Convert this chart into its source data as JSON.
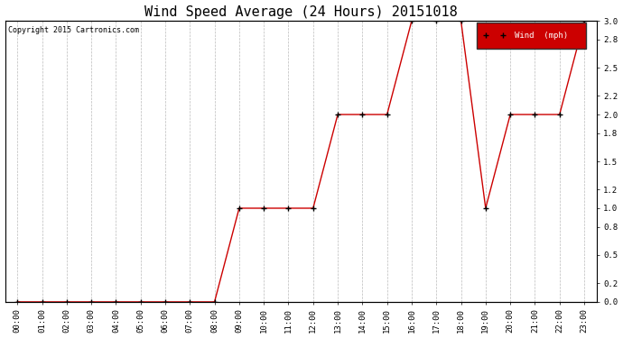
{
  "title": "Wind Speed Average (24 Hours) 20151018",
  "copyright": "Copyright 2015 Cartronics.com",
  "background_color": "#ffffff",
  "plot_bg_color": "#ffffff",
  "grid_color": "#bbbbbb",
  "line_color": "#cc0000",
  "marker_color": "#000000",
  "x_labels": [
    "00:00",
    "01:00",
    "02:00",
    "03:00",
    "04:00",
    "05:00",
    "06:00",
    "07:00",
    "08:00",
    "09:00",
    "10:00",
    "11:00",
    "12:00",
    "13:00",
    "14:00",
    "15:00",
    "16:00",
    "17:00",
    "18:00",
    "19:00",
    "20:00",
    "21:00",
    "22:00",
    "23:00"
  ],
  "x_values": [
    0,
    1,
    2,
    3,
    4,
    5,
    6,
    7,
    8,
    9,
    10,
    11,
    12,
    13,
    14,
    15,
    16,
    17,
    18,
    19,
    20,
    21,
    22,
    23
  ],
  "y_values": [
    0.0,
    0.0,
    0.0,
    0.0,
    0.0,
    0.0,
    0.0,
    0.0,
    0.0,
    1.0,
    1.0,
    1.0,
    1.0,
    2.0,
    2.0,
    2.0,
    3.0,
    3.0,
    3.0,
    1.0,
    2.0,
    2.0,
    2.0,
    3.0
  ],
  "ylim": [
    0.0,
    3.0
  ],
  "yticks": [
    0.0,
    0.2,
    0.5,
    0.8,
    1.0,
    1.2,
    1.5,
    1.8,
    2.0,
    2.2,
    2.5,
    2.8,
    3.0
  ],
  "title_fontsize": 11,
  "copyright_fontsize": 6,
  "tick_fontsize": 6.5,
  "legend_label": "Wind  (mph)",
  "legend_bg": "#cc0000",
  "legend_text_color": "#ffffff",
  "legend_fontsize": 6.5
}
